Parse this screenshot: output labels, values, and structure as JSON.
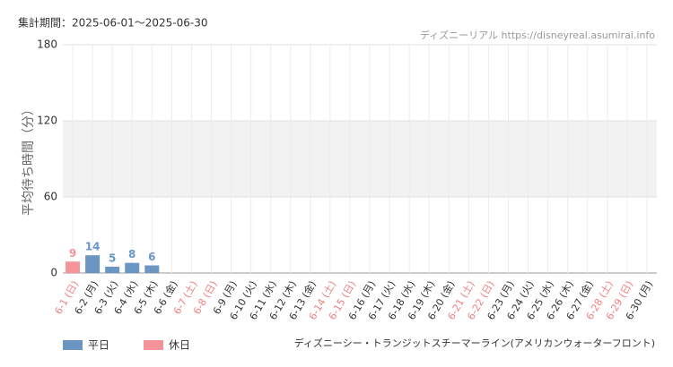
{
  "chart_data": {
    "type": "bar",
    "title": "集計期間：2025-06-01～2025-06-30",
    "source": "ディズニーリアル https://disneyreal.asumirai.info",
    "y_label": "平均待ち時間（分）",
    "footnote": "ディズニーシー・トランジットスチーマーライン(アメリカンウォーターフロント)",
    "categories": [
      "6-1 (日)",
      "6-2 (月)",
      "6-3 (火)",
      "6-4 (水)",
      "6-5 (木)",
      "6-6 (金)",
      "6-7 (土)",
      "6-8 (日)",
      "6-9 (月)",
      "6-10 (火)",
      "6-11 (水)",
      "6-12 (木)",
      "6-13 (金)",
      "6-14 (土)",
      "6-15 (日)",
      "6-16 (月)",
      "6-17 (火)",
      "6-18 (水)",
      "6-19 (木)",
      "6-20 (金)",
      "6-21 (土)",
      "6-22 (日)",
      "6-23 (月)",
      "6-24 (火)",
      "6-25 (水)",
      "6-26 (木)",
      "6-27 (金)",
      "6-28 (土)",
      "6-29 (日)",
      "6-30 (月)"
    ],
    "category_colors": [
      "#f08080",
      "#333333",
      "#333333",
      "#333333",
      "#333333",
      "#333333",
      "#f08080",
      "#f08080",
      "#333333",
      "#333333",
      "#333333",
      "#333333",
      "#333333",
      "#f08080",
      "#f08080",
      "#333333",
      "#333333",
      "#333333",
      "#333333",
      "#333333",
      "#f08080",
      "#f08080",
      "#333333",
      "#333333",
      "#333333",
      "#333333",
      "#333333",
      "#f08080",
      "#f08080",
      "#333333"
    ],
    "series": [
      {
        "name": "平日",
        "color": "#6b96c4",
        "values": [
          null,
          14,
          5,
          8,
          6,
          null,
          null,
          null,
          null,
          null,
          null,
          null,
          null,
          null,
          null,
          null,
          null,
          null,
          null,
          null,
          null,
          null,
          null,
          null,
          null,
          null,
          null,
          null,
          null,
          null
        ]
      },
      {
        "name": "休日",
        "color": "#f4949a",
        "values": [
          9,
          null,
          null,
          null,
          null,
          null,
          null,
          null,
          null,
          null,
          null,
          null,
          null,
          null,
          null,
          null,
          null,
          null,
          null,
          null,
          null,
          null,
          null,
          null,
          null,
          null,
          null,
          null,
          null,
          null
        ]
      }
    ],
    "ylim": [
      0,
      180
    ],
    "yticks": [
      0,
      60,
      120,
      180
    ],
    "grid": true,
    "legend": "bottom-left"
  }
}
